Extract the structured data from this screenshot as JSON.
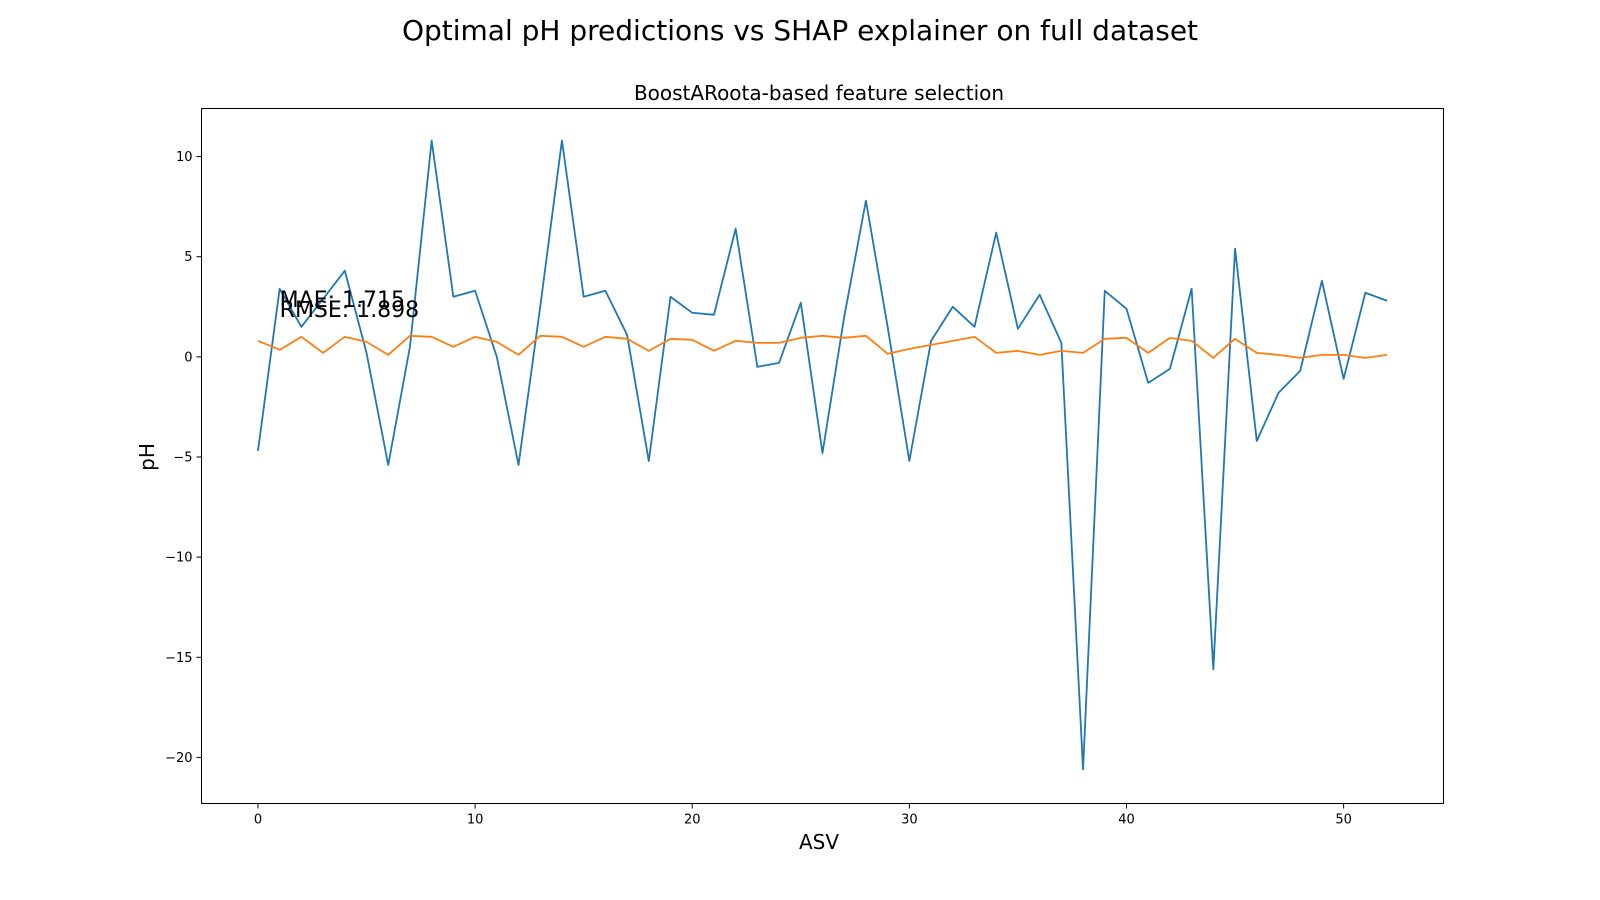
{
  "chart_data": {
    "type": "line",
    "suptitle": "Optimal pH predictions vs SHAP explainer on full dataset",
    "title": "BoostARoota-based feature selection",
    "xlabel": "ASV",
    "ylabel": "pH",
    "xlim": [
      -2.6,
      54.6
    ],
    "ylim": [
      -22.3,
      12.4
    ],
    "xticks": [
      0,
      10,
      20,
      30,
      40,
      50
    ],
    "yticks": [
      10,
      5,
      0,
      -5,
      -10,
      -15,
      -20
    ],
    "ytick_labels": [
      "10",
      "5",
      "0",
      "−5",
      "−10",
      "−15",
      "−20"
    ],
    "grid": false,
    "annotations": [
      {
        "text": "MAE: 1.715",
        "x": 1,
        "y": 2.5
      },
      {
        "text": "RMSE: 1.898",
        "x": 1,
        "y": 2.0
      }
    ],
    "x": [
      0,
      1,
      2,
      3,
      4,
      5,
      6,
      7,
      8,
      9,
      10,
      11,
      12,
      13,
      14,
      15,
      16,
      17,
      18,
      19,
      20,
      21,
      22,
      23,
      24,
      25,
      26,
      27,
      28,
      29,
      30,
      31,
      32,
      33,
      34,
      35,
      36,
      37,
      38,
      39,
      40,
      41,
      42,
      43,
      44,
      45,
      46,
      47,
      48,
      49,
      50,
      51,
      52
    ],
    "series": [
      {
        "color": "#1f77b4",
        "values": [
          -4.7,
          3.4,
          1.5,
          2.9,
          4.3,
          0.2,
          -5.4,
          0.5,
          10.8,
          3.0,
          3.3,
          0.0,
          -5.4,
          2.5,
          10.8,
          3.0,
          3.3,
          1.1,
          -5.2,
          3.0,
          2.2,
          2.1,
          6.4,
          -0.5,
          -0.3,
          2.7,
          -4.8,
          2.0,
          7.8,
          1.5,
          -5.2,
          0.8,
          2.5,
          1.5,
          6.2,
          1.4,
          3.1,
          0.7,
          -20.6,
          3.3,
          2.4,
          -1.3,
          -0.6,
          3.4,
          -15.6,
          5.4,
          -4.2,
          -1.8,
          -0.7,
          3.8,
          -1.1,
          3.2,
          2.8
        ]
      },
      {
        "color": "#ff7f0e",
        "values": [
          0.8,
          0.35,
          1.0,
          0.2,
          1.0,
          0.75,
          0.1,
          1.05,
          1.0,
          0.5,
          1.0,
          0.75,
          0.1,
          1.05,
          1.0,
          0.5,
          1.0,
          0.9,
          0.3,
          0.9,
          0.85,
          0.3,
          0.8,
          0.7,
          0.7,
          0.95,
          1.05,
          0.95,
          1.05,
          0.15,
          0.4,
          0.6,
          0.8,
          1.0,
          0.2,
          0.3,
          0.1,
          0.3,
          0.2,
          0.9,
          0.95,
          0.2,
          0.95,
          0.8,
          -0.05,
          0.9,
          0.2,
          0.1,
          -0.05,
          0.1,
          0.1,
          -0.05,
          0.1
        ]
      }
    ]
  }
}
